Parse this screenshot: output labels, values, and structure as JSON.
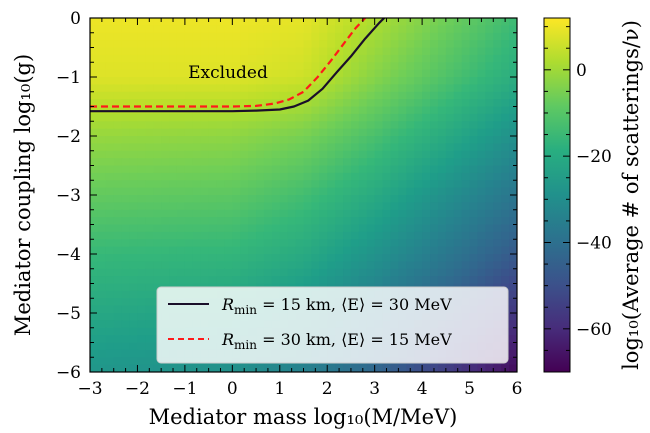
{
  "chart_data": {
    "type": "heatmap",
    "xlabel": "Mediator mass log₁₀(M/MeV)",
    "ylabel": "Mediator coupling log₁₀(g)",
    "colorbar_label": "log₁₀(Average # of scatterings/ν)",
    "xlim": [
      -3,
      6
    ],
    "ylim": [
      -6,
      0
    ],
    "x_ticks": [
      "−3",
      "−2",
      "−1",
      "0",
      "1",
      "2",
      "3",
      "4",
      "5",
      "6"
    ],
    "y_ticks": [
      "0",
      "−1",
      "−2",
      "−3",
      "−4",
      "−5",
      "−6"
    ],
    "colorbar_range": [
      -70,
      12
    ],
    "colorbar_ticks": [
      "0",
      "−20",
      "−40",
      "−60"
    ],
    "colormap": "viridis",
    "annotation": "Excluded",
    "field": {
      "x_knots": [
        -3,
        0,
        1.5,
        3,
        4.5,
        6
      ],
      "y_knots": [
        0,
        -1,
        -2,
        -3,
        -4,
        -5,
        -6
      ],
      "values": [
        [
          10,
          10,
          9,
          2,
          -6,
          -14
        ],
        [
          8,
          8,
          6,
          -3,
          -11,
          -19
        ],
        [
          -1,
          -2,
          -5,
          -12,
          -20,
          -29
        ],
        [
          -8,
          -9,
          -13,
          -20,
          -29,
          -38
        ],
        [
          -15,
          -16,
          -20,
          -28,
          -37,
          -47
        ],
        [
          -21,
          -23,
          -28,
          -36,
          -46,
          -57
        ],
        [
          -27,
          -29,
          -34,
          -43,
          -55,
          -68
        ]
      ]
    },
    "series": [
      {
        "name": "R_min = 15 km, ⟨E⟩ = 30 MeV",
        "color": "#1a0f2a",
        "style": "solid",
        "x": [
          -3,
          -2,
          -1,
          0,
          0.5,
          1,
          1.3,
          1.6,
          1.9,
          2.2,
          2.5,
          2.8,
          3.1,
          3.2
        ],
        "y": [
          -1.58,
          -1.58,
          -1.58,
          -1.58,
          -1.57,
          -1.55,
          -1.5,
          -1.4,
          -1.2,
          -0.92,
          -0.65,
          -0.35,
          -0.08,
          0
        ]
      },
      {
        "name": "R_min = 30 km, ⟨E⟩ = 15 MeV",
        "color": "#ff1a1a",
        "style": "dashed",
        "x": [
          -3,
          -2,
          -1,
          0,
          0.5,
          0.9,
          1.2,
          1.5,
          1.8,
          2.1,
          2.4,
          2.6,
          2.8
        ],
        "y": [
          -1.5,
          -1.5,
          -1.5,
          -1.5,
          -1.49,
          -1.45,
          -1.38,
          -1.25,
          -1.0,
          -0.7,
          -0.38,
          -0.17,
          0
        ]
      }
    ],
    "legend": {
      "position": "bottom-right",
      "entries": [
        {
          "prefix": "R",
          "sub": "min",
          "text": " = 15 km, ⟨E⟩ = 30 MeV"
        },
        {
          "prefix": "R",
          "sub": "min",
          "text": " = 30 km, ⟨E⟩ = 15 MeV"
        }
      ]
    }
  }
}
